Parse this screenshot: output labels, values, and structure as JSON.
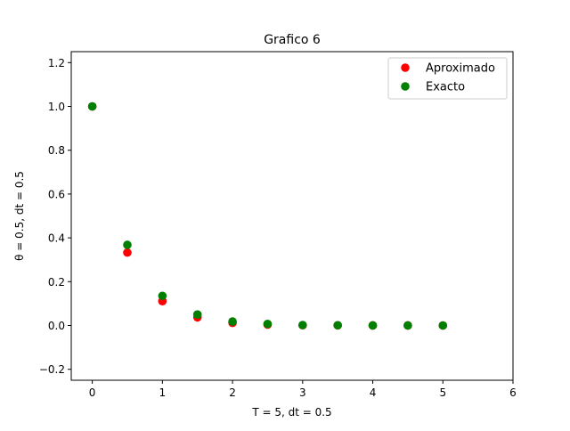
{
  "chart_data": {
    "type": "scatter",
    "title": "Grafico 6",
    "xlabel": "T = 5, dt = 0.5",
    "ylabel": "θ = 0.5,  dt = 0.5",
    "xlim": [
      -0.3,
      6.0
    ],
    "ylim": [
      -0.25,
      1.25
    ],
    "xticks": [
      0,
      1,
      2,
      3,
      4,
      5,
      6
    ],
    "xtick_labels": [
      "0",
      "1",
      "2",
      "3",
      "4",
      "5",
      "6"
    ],
    "yticks": [
      -0.2,
      0.0,
      0.2,
      0.4,
      0.6,
      0.8,
      1.0,
      1.2
    ],
    "ytick_labels": [
      "−0.2",
      "0.0",
      "0.2",
      "0.4",
      "0.6",
      "0.8",
      "1.0",
      "1.2"
    ],
    "grid": false,
    "legend_position": "top-right",
    "series": [
      {
        "name": "Aproximado",
        "color": "#ff0000",
        "x": [
          0,
          0.5,
          1,
          1.5,
          2,
          2.5,
          3,
          3.5,
          4,
          4.5,
          5
        ],
        "y": [
          1.0,
          0.333,
          0.111,
          0.037,
          0.012,
          0.004,
          0.001,
          0.0005,
          0.0002,
          0.0001,
          0.0
        ]
      },
      {
        "name": "Exacto",
        "color": "#008000",
        "x": [
          0,
          0.5,
          1,
          1.5,
          2,
          2.5,
          3,
          3.5,
          4,
          4.5,
          5
        ],
        "y": [
          1.0,
          0.368,
          0.135,
          0.05,
          0.018,
          0.007,
          0.002,
          0.001,
          0.0003,
          0.0001,
          0.0
        ]
      }
    ]
  }
}
